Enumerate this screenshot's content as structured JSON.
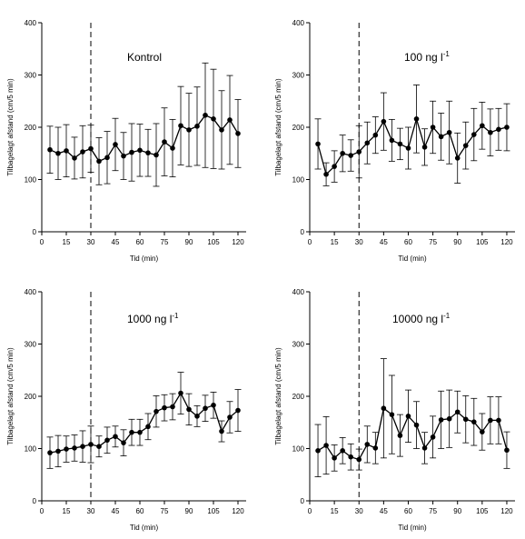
{
  "chart_data": [
    {
      "type": "line",
      "title": "Kontrol",
      "title_sup": "",
      "xlabel": "Tid (min)",
      "ylabel": "Tilbagelagt afstand (cm/5 min)",
      "xlim": [
        0,
        125
      ],
      "ylim": [
        0,
        400
      ],
      "xticks": [
        0,
        15,
        30,
        45,
        60,
        75,
        90,
        105,
        120
      ],
      "yticks": [
        0,
        100,
        200,
        300,
        400
      ],
      "vline_x": 30,
      "x": [
        5,
        10,
        15,
        20,
        25,
        30,
        35,
        40,
        45,
        50,
        55,
        60,
        65,
        70,
        75,
        80,
        85,
        90,
        95,
        100,
        105,
        110,
        115,
        120
      ],
      "values": [
        157,
        150,
        155,
        141,
        153,
        159,
        135,
        142,
        167,
        145,
        152,
        156,
        151,
        147,
        172,
        160,
        203,
        195,
        202,
        223,
        216,
        195,
        214,
        188
      ],
      "error": [
        45,
        50,
        50,
        40,
        50,
        45,
        45,
        50,
        50,
        45,
        55,
        50,
        45,
        60,
        65,
        55,
        75,
        70,
        75,
        100,
        95,
        75,
        85,
        65
      ]
    },
    {
      "type": "line",
      "title": "100 ng l",
      "title_sup": "-1",
      "xlabel": "Tid (min)",
      "ylabel": "Tilbagelagt afstand (cm/5 min)",
      "xlim": [
        0,
        125
      ],
      "ylim": [
        0,
        400
      ],
      "xticks": [
        0,
        15,
        30,
        45,
        60,
        75,
        90,
        105,
        120
      ],
      "yticks": [
        0,
        100,
        200,
        300,
        400
      ],
      "vline_x": 30,
      "x": [
        5,
        10,
        15,
        20,
        25,
        30,
        35,
        40,
        45,
        50,
        55,
        60,
        65,
        70,
        75,
        80,
        85,
        90,
        95,
        100,
        105,
        110,
        115,
        120
      ],
      "values": [
        168,
        110,
        125,
        150,
        146,
        153,
        170,
        185,
        211,
        175,
        168,
        160,
        216,
        162,
        200,
        182,
        190,
        141,
        165,
        186,
        203,
        190,
        196,
        200
      ],
      "error": [
        48,
        22,
        30,
        35,
        30,
        50,
        40,
        35,
        55,
        40,
        30,
        40,
        65,
        35,
        50,
        45,
        60,
        48,
        45,
        50,
        45,
        45,
        40,
        45
      ]
    },
    {
      "type": "line",
      "title": "1000 ng l",
      "title_sup": "-1",
      "xlabel": "Tid (min)",
      "ylabel": "Tilbagelagt afstand (cm/5 min)",
      "xlim": [
        0,
        125
      ],
      "ylim": [
        0,
        400
      ],
      "xticks": [
        0,
        15,
        30,
        45,
        60,
        75,
        90,
        105,
        120
      ],
      "yticks": [
        0,
        100,
        200,
        300,
        400
      ],
      "vline_x": 30,
      "x": [
        5,
        10,
        15,
        20,
        25,
        30,
        35,
        40,
        45,
        50,
        55,
        60,
        65,
        70,
        75,
        80,
        85,
        90,
        95,
        100,
        105,
        110,
        115,
        120
      ],
      "values": [
        92,
        95,
        99,
        101,
        104,
        108,
        104,
        116,
        123,
        111,
        131,
        131,
        142,
        171,
        178,
        180,
        206,
        175,
        162,
        177,
        183,
        133,
        160,
        173
      ],
      "error": [
        30,
        30,
        25,
        25,
        30,
        35,
        20,
        25,
        20,
        25,
        25,
        25,
        25,
        30,
        25,
        25,
        40,
        30,
        20,
        25,
        25,
        20,
        30,
        40
      ]
    },
    {
      "type": "line",
      "title": "10000 ng l",
      "title_sup": "-1",
      "xlabel": "Tid (min)",
      "ylabel": "Tilbagelagt afstand (cm/5 min)",
      "xlim": [
        0,
        125
      ],
      "ylim": [
        0,
        400
      ],
      "xticks": [
        0,
        15,
        30,
        45,
        60,
        75,
        90,
        105,
        120
      ],
      "yticks": [
        0,
        100,
        200,
        300,
        400
      ],
      "vline_x": 30,
      "x": [
        5,
        10,
        15,
        20,
        25,
        30,
        35,
        40,
        45,
        50,
        55,
        60,
        65,
        70,
        75,
        80,
        85,
        90,
        95,
        100,
        105,
        110,
        115,
        120
      ],
      "values": [
        96,
        106,
        82,
        96,
        84,
        79,
        108,
        101,
        177,
        165,
        125,
        162,
        145,
        101,
        122,
        155,
        157,
        170,
        156,
        151,
        132,
        154,
        154,
        97
      ],
      "error": [
        50,
        55,
        25,
        25,
        25,
        20,
        35,
        30,
        95,
        75,
        40,
        50,
        45,
        30,
        40,
        55,
        55,
        40,
        45,
        45,
        35,
        45,
        45,
        35
      ]
    }
  ]
}
